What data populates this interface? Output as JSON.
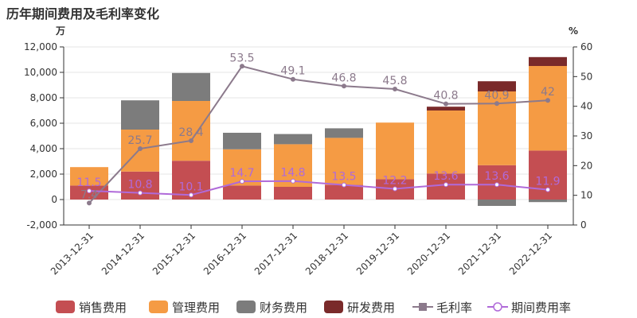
{
  "chart_data": {
    "type": "bar",
    "title": "历年期间费用及毛利率变化",
    "left_unit": "万",
    "right_unit": "%",
    "categories": [
      "2013-12-31",
      "2014-12-31",
      "2015-12-31",
      "2016-12-31",
      "2017-12-31",
      "2018-12-31",
      "2019-12-31",
      "2020-12-31",
      "2021-12-31",
      "2022-12-31"
    ],
    "y_left": {
      "min": -2000,
      "max": 12000,
      "ticks": [
        -2000,
        0,
        2000,
        4000,
        6000,
        8000,
        10000,
        12000
      ],
      "tick_labels": [
        "-2,000",
        "0",
        "2,000",
        "4,000",
        "6,000",
        "8,000",
        "10,000",
        "12,000"
      ]
    },
    "y_right": {
      "min": 0,
      "max": 60,
      "ticks": [
        0,
        10,
        20,
        30,
        40,
        50,
        60
      ],
      "tick_labels": [
        "0",
        "10",
        "20",
        "30",
        "40",
        "50",
        "60"
      ]
    },
    "bar_series": [
      {
        "name": "销售费用",
        "color": "#c44e52",
        "values": [
          1100,
          2200,
          3050,
          1100,
          1000,
          1150,
          1600,
          2050,
          2700,
          3850
        ]
      },
      {
        "name": "管理费用",
        "color": "#f59b44",
        "values": [
          1450,
          3300,
          4700,
          2850,
          3350,
          3700,
          4450,
          4950,
          5800,
          6650
        ]
      },
      {
        "name": "财务费用",
        "color": "#7c7c7c",
        "values": [
          0,
          2300,
          2200,
          1300,
          800,
          750,
          0,
          0,
          -500,
          -200
        ]
      },
      {
        "name": "研发费用",
        "color": "#7a2a2a",
        "values": [
          0,
          0,
          0,
          0,
          0,
          0,
          0,
          300,
          800,
          700
        ]
      }
    ],
    "line_series": [
      {
        "name": "毛利率",
        "color": "#8c7a8c",
        "values": [
          7.4,
          25.7,
          28.4,
          53.5,
          49.1,
          46.8,
          45.8,
          40.8,
          40.9,
          42
        ],
        "labels": [
          "7.4",
          "25.7",
          "28.4",
          "53.5",
          "49.1",
          "46.8",
          "45.8",
          "40.8",
          "40.9",
          "42"
        ]
      },
      {
        "name": "期间费用率",
        "color": "#b06ad9",
        "values": [
          11.5,
          10.8,
          10.1,
          14.7,
          14.8,
          13.5,
          12.2,
          13.6,
          13.6,
          11.9
        ],
        "labels": [
          "11.5",
          "10.8",
          "10.1",
          "14.7",
          "14.8",
          "13.5",
          "12.2",
          "13.6",
          "13.6",
          "11.9"
        ]
      }
    ],
    "legend": [
      "销售费用",
      "管理费用",
      "财务费用",
      "研发费用",
      "毛利率",
      "期间费用率"
    ],
    "legend_position": "bottom"
  }
}
